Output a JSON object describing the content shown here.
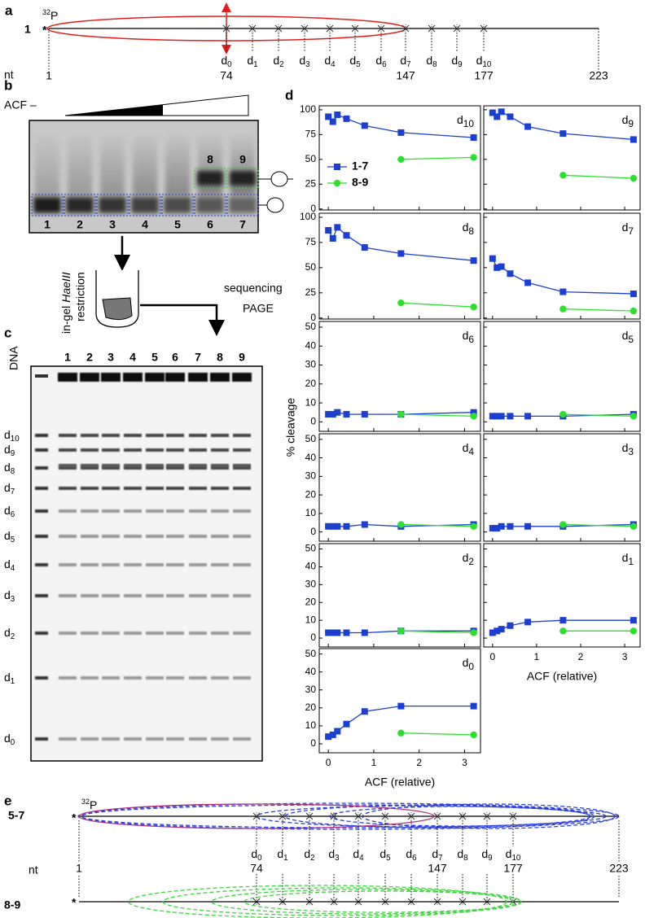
{
  "panel_labels": [
    "a",
    "b",
    "c",
    "d",
    "e"
  ],
  "panel_a": {
    "construct": "1",
    "star": "*",
    "isotope": {
      "sup": "32",
      "base": "P"
    },
    "dyads": [
      {
        "base": "d",
        "sub": "0"
      },
      {
        "base": "d",
        "sub": "1"
      },
      {
        "base": "d",
        "sub": "2"
      },
      {
        "base": "d",
        "sub": "3"
      },
      {
        "base": "d",
        "sub": "4"
      },
      {
        "base": "d",
        "sub": "5"
      },
      {
        "base": "d",
        "sub": "6"
      },
      {
        "base": "d",
        "sub": "7"
      },
      {
        "base": "d",
        "sub": "8"
      },
      {
        "base": "d",
        "sub": "9"
      },
      {
        "base": "d",
        "sub": "10"
      }
    ],
    "nt_label": "nt",
    "positions": [
      "1",
      "74",
      "147",
      "177",
      "223"
    ]
  },
  "panel_b": {
    "acf_label": "ACF –",
    "complex_labels": [
      "8",
      "9"
    ],
    "lanes": [
      "1",
      "2",
      "3",
      "4",
      "5",
      "6",
      "7"
    ]
  },
  "workflow": {
    "step1": [
      "in-gel",
      "HaeIII",
      "restriction"
    ],
    "step2": [
      "sequencing",
      "PAGE"
    ]
  },
  "panel_c": {
    "marker_lane": "DNA",
    "lanes": [
      "1",
      "2",
      "3",
      "4",
      "5",
      "6",
      "7",
      "8",
      "9"
    ],
    "bands": [
      {
        "base": "d",
        "sub": "10"
      },
      {
        "base": "d",
        "sub": "9"
      },
      {
        "base": "d",
        "sub": "8"
      },
      {
        "base": "d",
        "sub": "7"
      },
      {
        "base": "d",
        "sub": "6"
      },
      {
        "base": "d",
        "sub": "5"
      },
      {
        "base": "d",
        "sub": "4"
      },
      {
        "base": "d",
        "sub": "3"
      },
      {
        "base": "d",
        "sub": "2"
      },
      {
        "base": "d",
        "sub": "1"
      },
      {
        "base": "d",
        "sub": "0"
      }
    ]
  },
  "panel_d": {
    "y_label": "% cleavage"
  },
  "chart_data": [
    {
      "type": "line",
      "title": {
        "base": "d",
        "sub": "10"
      },
      "xlim": [
        -0.2,
        3.35
      ],
      "xticks": [
        0,
        1,
        2,
        3
      ],
      "ylim": [
        -1,
        104
      ],
      "yticks": [
        0,
        25,
        50,
        75,
        100
      ],
      "series": [
        {
          "name": "1-7",
          "color": "#1b3fd0",
          "marker": "square",
          "x": [
            0,
            0.1,
            0.2,
            0.4,
            0.8,
            1.6,
            3.2
          ],
          "values": [
            93,
            88,
            95,
            91,
            84,
            77,
            72
          ]
        },
        {
          "name": "8-9",
          "color": "#2ee02e",
          "marker": "circle",
          "x": [
            1.6,
            3.2
          ],
          "values": [
            50,
            52
          ]
        }
      ]
    },
    {
      "type": "line",
      "title": {
        "base": "d",
        "sub": "9"
      },
      "xlim": [
        -0.2,
        3.35
      ],
      "xticks": [
        0,
        1,
        2,
        3
      ],
      "ylim": [
        -1,
        104
      ],
      "yticks": [
        0,
        25,
        50,
        75,
        100
      ],
      "series": [
        {
          "color": "#1b3fd0",
          "marker": "square",
          "x": [
            0,
            0.1,
            0.2,
            0.4,
            0.8,
            1.6,
            3.2
          ],
          "values": [
            97,
            93,
            98,
            93,
            83,
            76,
            70
          ]
        },
        {
          "color": "#2ee02e",
          "marker": "circle",
          "x": [
            1.6,
            3.2
          ],
          "values": [
            34,
            31
          ]
        }
      ]
    },
    {
      "type": "line",
      "title": {
        "base": "d",
        "sub": "8"
      },
      "xlim": [
        -0.2,
        3.35
      ],
      "xticks": [
        0,
        1,
        2,
        3
      ],
      "ylim": [
        -1,
        104
      ],
      "yticks": [
        0,
        25,
        50,
        75,
        100
      ],
      "series": [
        {
          "color": "#1b3fd0",
          "marker": "square",
          "x": [
            0,
            0.1,
            0.2,
            0.4,
            0.8,
            1.6,
            3.2
          ],
          "values": [
            87,
            79,
            90,
            82,
            70,
            64,
            57
          ]
        },
        {
          "color": "#2ee02e",
          "marker": "circle",
          "x": [
            1.6,
            3.2
          ],
          "values": [
            15,
            11
          ]
        }
      ]
    },
    {
      "type": "line",
      "title": {
        "base": "d",
        "sub": "7"
      },
      "xlim": [
        -0.2,
        3.35
      ],
      "xticks": [
        0,
        1,
        2,
        3
      ],
      "ylim": [
        -1,
        104
      ],
      "yticks": [
        0,
        25,
        50,
        75,
        100
      ],
      "series": [
        {
          "color": "#1b3fd0",
          "marker": "square",
          "x": [
            0,
            0.1,
            0.2,
            0.4,
            0.8,
            1.6,
            3.2
          ],
          "values": [
            59,
            50,
            51,
            44,
            35,
            26,
            24
          ]
        },
        {
          "color": "#2ee02e",
          "marker": "circle",
          "x": [
            1.6,
            3.2
          ],
          "values": [
            9,
            7
          ]
        }
      ]
    },
    {
      "type": "line",
      "title": {
        "base": "d",
        "sub": "6"
      },
      "xlim": [
        -0.2,
        3.35
      ],
      "xticks": [
        0,
        1,
        2,
        3
      ],
      "ylim": [
        -5,
        53
      ],
      "yticks": [
        0,
        10,
        20,
        30,
        40,
        50
      ],
      "series": [
        {
          "color": "#1b3fd0",
          "marker": "square",
          "x": [
            0,
            0.1,
            0.2,
            0.4,
            0.8,
            1.6,
            3.2
          ],
          "values": [
            4,
            4,
            5,
            4,
            4,
            4,
            5
          ]
        },
        {
          "color": "#2ee02e",
          "marker": "circle",
          "x": [
            1.6,
            3.2
          ],
          "values": [
            4,
            3
          ]
        }
      ]
    },
    {
      "type": "line",
      "title": {
        "base": "d",
        "sub": "5"
      },
      "xlim": [
        -0.2,
        3.35
      ],
      "xticks": [
        0,
        1,
        2,
        3
      ],
      "ylim": [
        -5,
        53
      ],
      "yticks": [
        0,
        10,
        20,
        30,
        40,
        50
      ],
      "series": [
        {
          "color": "#1b3fd0",
          "marker": "square",
          "x": [
            0,
            0.1,
            0.2,
            0.4,
            0.8,
            1.6,
            3.2
          ],
          "values": [
            3,
            3,
            3,
            3,
            3,
            3,
            4
          ]
        },
        {
          "color": "#2ee02e",
          "marker": "circle",
          "x": [
            1.6,
            3.2
          ],
          "values": [
            4,
            3
          ]
        }
      ]
    },
    {
      "type": "line",
      "title": {
        "base": "d",
        "sub": "4"
      },
      "xlim": [
        -0.2,
        3.35
      ],
      "xticks": [
        0,
        1,
        2,
        3
      ],
      "ylim": [
        -5,
        53
      ],
      "yticks": [
        0,
        10,
        20,
        30,
        40,
        50
      ],
      "series": [
        {
          "color": "#1b3fd0",
          "marker": "square",
          "x": [
            0,
            0.1,
            0.2,
            0.4,
            0.8,
            1.6,
            3.2
          ],
          "values": [
            3,
            3,
            3,
            3,
            4,
            3,
            4
          ]
        },
        {
          "color": "#2ee02e",
          "marker": "circle",
          "x": [
            1.6,
            3.2
          ],
          "values": [
            4,
            3
          ]
        }
      ]
    },
    {
      "type": "line",
      "title": {
        "base": "d",
        "sub": "3"
      },
      "xlim": [
        -0.2,
        3.35
      ],
      "xticks": [
        0,
        1,
        2,
        3
      ],
      "ylim": [
        -5,
        53
      ],
      "yticks": [
        0,
        10,
        20,
        30,
        40,
        50
      ],
      "series": [
        {
          "color": "#1b3fd0",
          "marker": "square",
          "x": [
            0,
            0.1,
            0.2,
            0.4,
            0.8,
            1.6,
            3.2
          ],
          "values": [
            2,
            2,
            3,
            3,
            3,
            3,
            4
          ]
        },
        {
          "color": "#2ee02e",
          "marker": "circle",
          "x": [
            1.6,
            3.2
          ],
          "values": [
            4,
            3
          ]
        }
      ]
    },
    {
      "type": "line",
      "title": {
        "base": "d",
        "sub": "2"
      },
      "xlim": [
        -0.2,
        3.35
      ],
      "xticks": [
        0,
        1,
        2,
        3
      ],
      "ylim": [
        -5,
        53
      ],
      "yticks": [
        0,
        10,
        20,
        30,
        40,
        50
      ],
      "series": [
        {
          "color": "#1b3fd0",
          "marker": "square",
          "x": [
            0,
            0.1,
            0.2,
            0.4,
            0.8,
            1.6,
            3.2
          ],
          "values": [
            3,
            3,
            3,
            3,
            3,
            4,
            4
          ]
        },
        {
          "color": "#2ee02e",
          "marker": "circle",
          "x": [
            1.6,
            3.2
          ],
          "values": [
            4,
            3
          ]
        }
      ]
    },
    {
      "type": "line",
      "title": {
        "base": "d",
        "sub": "1"
      },
      "x_label": "ACF (relative)",
      "xlim": [
        -0.2,
        3.35
      ],
      "xticks": [
        0,
        1,
        2,
        3
      ],
      "ylim": [
        -5,
        53
      ],
      "yticks": [
        0,
        10,
        20,
        30,
        40,
        50
      ],
      "series": [
        {
          "color": "#1b3fd0",
          "marker": "square",
          "x": [
            0,
            0.1,
            0.2,
            0.4,
            0.8,
            1.6,
            3.2
          ],
          "values": [
            3,
            4,
            5,
            7,
            9,
            10,
            10
          ]
        },
        {
          "color": "#2ee02e",
          "marker": "circle",
          "x": [
            1.6,
            3.2
          ],
          "values": [
            4,
            4
          ]
        }
      ]
    },
    {
      "type": "line",
      "title": {
        "base": "d",
        "sub": "0"
      },
      "x_label": "ACF (relative)",
      "xlim": [
        -0.2,
        3.35
      ],
      "xticks": [
        0,
        1,
        2,
        3
      ],
      "ylim": [
        -5,
        53
      ],
      "yticks": [
        0,
        10,
        20,
        30,
        40,
        50
      ],
      "series": [
        {
          "color": "#1b3fd0",
          "marker": "square",
          "x": [
            0,
            0.1,
            0.2,
            0.4,
            0.8,
            1.6,
            3.2
          ],
          "values": [
            4,
            5,
            7,
            11,
            18,
            21,
            21
          ]
        },
        {
          "color": "#2ee02e",
          "marker": "circle",
          "x": [
            1.6,
            3.2
          ],
          "values": [
            6,
            5
          ]
        }
      ]
    }
  ],
  "panel_e": {
    "constructs": [
      "5-7",
      "8-9"
    ],
    "star": "*",
    "isotope": {
      "sup": "32",
      "base": "P"
    },
    "nt_label": "nt",
    "positions": [
      "1",
      "74",
      "147",
      "177",
      "223"
    ],
    "dyads": [
      {
        "base": "d",
        "sub": "0"
      },
      {
        "base": "d",
        "sub": "1"
      },
      {
        "base": "d",
        "sub": "2"
      },
      {
        "base": "d",
        "sub": "3"
      },
      {
        "base": "d",
        "sub": "4"
      },
      {
        "base": "d",
        "sub": "5"
      },
      {
        "base": "d",
        "sub": "6"
      },
      {
        "base": "d",
        "sub": "7"
      },
      {
        "base": "d",
        "sub": "8"
      },
      {
        "base": "d",
        "sub": "9"
      },
      {
        "base": "d",
        "sub": "10"
      }
    ]
  }
}
